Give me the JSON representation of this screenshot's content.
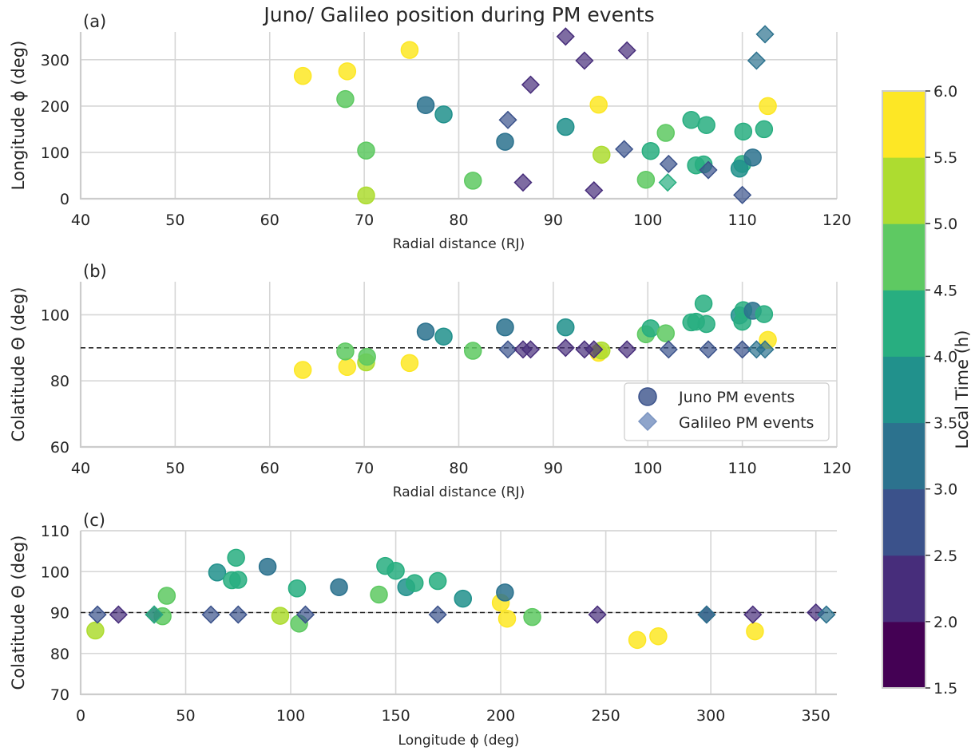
{
  "title": "Juno/ Galileo position during PM events",
  "colorbar": {
    "label": "Local Time (h)",
    "range": [
      1.5,
      6.0
    ],
    "ticks": [
      "1.5",
      "2.0",
      "2.5",
      "3.0",
      "3.5",
      "4.0",
      "4.5",
      "5.0",
      "5.5",
      "6.0"
    ],
    "colors": [
      "#440154",
      "#472d7b",
      "#3b528b",
      "#2c728e",
      "#21918c",
      "#28ae80",
      "#5ec962",
      "#addc30",
      "#fde725"
    ]
  },
  "legend": {
    "juno": "Juno PM events",
    "galileo": "Galileo PM events"
  },
  "chart_data": [
    {
      "type": "scatter",
      "panel_label": "(a)",
      "xlabel": "Radial distance (RJ)",
      "ylabel": "Longitude ϕ (deg)",
      "xlim": [
        40,
        120
      ],
      "ylim": [
        0,
        360
      ],
      "xticks": [
        40,
        50,
        60,
        70,
        80,
        90,
        100,
        110,
        120
      ],
      "yticks": [
        0,
        100,
        200,
        300
      ],
      "grid": true,
      "series": [
        {
          "name": "Juno PM events",
          "marker": "circle",
          "points": [
            [
              63.5,
              265,
              5.9
            ],
            [
              68.2,
              275,
              5.9
            ],
            [
              74.8,
              321,
              5.9
            ],
            [
              94.8,
              203,
              5.9
            ],
            [
              112.7,
              200,
              5.9
            ],
            [
              95.1,
              95,
              5.3
            ],
            [
              70.2,
              7,
              5.4
            ],
            [
              70.2,
              104,
              4.8
            ],
            [
              81.5,
              39,
              4.8
            ],
            [
              68.0,
              215,
              4.6
            ],
            [
              99.8,
              41,
              4.6
            ],
            [
              101.9,
              142,
              4.7
            ],
            [
              100.3,
              103,
              4.4
            ],
            [
              110.1,
              145,
              4.2
            ],
            [
              112.3,
              150,
              4.1
            ],
            [
              106.2,
              159,
              4.1
            ],
            [
              104.6,
              170,
              4.0
            ],
            [
              105.9,
              74,
              4.0
            ],
            [
              105.1,
              72,
              4.0
            ],
            [
              110.0,
              75,
              4.0
            ],
            [
              109.7,
              65,
              3.9
            ],
            [
              76.5,
              202,
              3.4
            ],
            [
              78.4,
              182,
              3.6
            ],
            [
              91.3,
              155,
              3.5
            ],
            [
              84.9,
              123,
              3.2
            ],
            [
              111.1,
              89,
              3.1
            ]
          ]
        },
        {
          "name": "Galileo PM events",
          "marker": "diamond",
          "points": [
            [
              91.3,
              350,
              2.0
            ],
            [
              93.3,
              298,
              2.1
            ],
            [
              97.8,
              320,
              2.1
            ],
            [
              87.6,
              246,
              2.1
            ],
            [
              85.2,
              170,
              2.5
            ],
            [
              86.8,
              35,
              2.1
            ],
            [
              94.3,
              18,
              2.4
            ],
            [
              97.5,
              107,
              2.6
            ],
            [
              102.2,
              75,
              2.7
            ],
            [
              106.4,
              62,
              2.8
            ],
            [
              110.0,
              8,
              2.9
            ],
            [
              111.5,
              298,
              3.3
            ],
            [
              112.4,
              355,
              3.3
            ],
            [
              102.1,
              35,
              4.1
            ]
          ]
        }
      ]
    },
    {
      "type": "scatter",
      "panel_label": "(b)",
      "xlabel": "Radial distance (RJ)",
      "ylabel": "Colatitude Θ  (deg)",
      "xlim": [
        40,
        120
      ],
      "ylim": [
        60,
        110
      ],
      "xticks": [
        40,
        50,
        60,
        70,
        80,
        90,
        100,
        110,
        120
      ],
      "yticks": [
        60,
        80,
        100
      ],
      "reference_line": 90,
      "grid": true,
      "series": [
        {
          "name": "Juno PM events",
          "marker": "circle",
          "points": [
            [
              63.5,
              83.3,
              5.9
            ],
            [
              68.2,
              84.2,
              5.9
            ],
            [
              70.2,
              85.6,
              5.4
            ],
            [
              74.8,
              85.4,
              5.9
            ],
            [
              70.3,
              87.3,
              4.8
            ],
            [
              68.0,
              88.9,
              4.6
            ],
            [
              81.5,
              89.1,
              4.8
            ],
            [
              76.5,
              94.9,
              3.4
            ],
            [
              78.4,
              93.4,
              3.6
            ],
            [
              84.9,
              96.2,
              3.2
            ],
            [
              91.3,
              96.2,
              3.5
            ],
            [
              94.8,
              88.5,
              5.9
            ],
            [
              95.1,
              89.2,
              5.3
            ],
            [
              99.8,
              94.1,
              4.6
            ],
            [
              100.3,
              95.9,
              4.4
            ],
            [
              101.9,
              94.4,
              4.7
            ],
            [
              104.6,
              97.7,
              4.0
            ],
            [
              105.1,
              97.9,
              4.0
            ],
            [
              105.9,
              103.4,
              4.0
            ],
            [
              106.2,
              97.2,
              4.1
            ],
            [
              109.7,
              99.8,
              3.9
            ],
            [
              110.0,
              97.9,
              4.1
            ],
            [
              110.1,
              101.4,
              4.2
            ],
            [
              111.1,
              101.2,
              3.1
            ],
            [
              112.3,
              100.2,
              4.1
            ],
            [
              112.7,
              92.4,
              5.9
            ]
          ]
        },
        {
          "name": "Galileo PM events",
          "marker": "diamond",
          "points": [
            [
              85.2,
              89.5,
              2.5
            ],
            [
              86.8,
              89.5,
              2.1
            ],
            [
              87.6,
              89.5,
              2.1
            ],
            [
              91.3,
              90.0,
              2.0
            ],
            [
              93.3,
              89.5,
              2.1
            ],
            [
              94.3,
              89.5,
              2.4
            ],
            [
              97.8,
              89.5,
              2.1
            ],
            [
              102.2,
              89.5,
              2.7
            ],
            [
              106.4,
              89.5,
              2.8
            ],
            [
              110.0,
              89.5,
              2.9
            ],
            [
              111.5,
              89.5,
              3.3
            ],
            [
              112.4,
              89.5,
              3.3
            ]
          ]
        }
      ]
    },
    {
      "type": "scatter",
      "panel_label": "(c)",
      "xlabel": "Longitude ϕ (deg)",
      "ylabel": "Colatitude Θ  (deg)",
      "xlim": [
        0,
        360
      ],
      "ylim": [
        70,
        110
      ],
      "xticks": [
        0,
        50,
        100,
        150,
        200,
        250,
        300,
        350
      ],
      "yticks": [
        70,
        80,
        90,
        100,
        110
      ],
      "reference_line": 90,
      "grid": true,
      "series": [
        {
          "name": "Juno PM events",
          "marker": "circle",
          "points": [
            [
              7,
              85.6,
              5.4
            ],
            [
              39,
              89.1,
              4.8
            ],
            [
              41,
              94.1,
              4.6
            ],
            [
              65,
              99.8,
              3.9
            ],
            [
              72,
              97.9,
              4.0
            ],
            [
              74,
              103.4,
              4.0
            ],
            [
              75,
              98.0,
              4.1
            ],
            [
              89,
              101.2,
              3.1
            ],
            [
              95,
              89.2,
              5.3
            ],
            [
              103,
              95.9,
              4.4
            ],
            [
              104,
              87.3,
              4.8
            ],
            [
              123,
              96.2,
              3.2
            ],
            [
              142,
              94.4,
              4.7
            ],
            [
              145,
              101.4,
              4.2
            ],
            [
              150,
              100.2,
              4.1
            ],
            [
              155,
              96.2,
              3.5
            ],
            [
              159,
              97.2,
              4.1
            ],
            [
              170,
              97.7,
              4.0
            ],
            [
              182,
              93.4,
              3.6
            ],
            [
              200,
              92.4,
              5.9
            ],
            [
              202,
              94.9,
              3.4
            ],
            [
              203,
              88.5,
              5.9
            ],
            [
              215,
              88.9,
              4.6
            ],
            [
              265,
              83.3,
              5.9
            ],
            [
              275,
              84.2,
              5.9
            ],
            [
              321,
              85.4,
              5.9
            ]
          ]
        },
        {
          "name": "Galileo PM events",
          "marker": "diamond",
          "points": [
            [
              8,
              89.5,
              2.9
            ],
            [
              18,
              89.5,
              2.4
            ],
            [
              35,
              89.5,
              2.1
            ],
            [
              35,
              89.5,
              4.1
            ],
            [
              62,
              89.5,
              2.8
            ],
            [
              75,
              89.5,
              2.7
            ],
            [
              107,
              89.5,
              2.6
            ],
            [
              170,
              89.5,
              2.5
            ],
            [
              246,
              89.5,
              2.1
            ],
            [
              298,
              89.5,
              2.1
            ],
            [
              298,
              89.5,
              3.3
            ],
            [
              320,
              89.5,
              2.1
            ],
            [
              350,
              90.0,
              2.0
            ],
            [
              355,
              89.5,
              3.3
            ]
          ]
        }
      ]
    }
  ]
}
